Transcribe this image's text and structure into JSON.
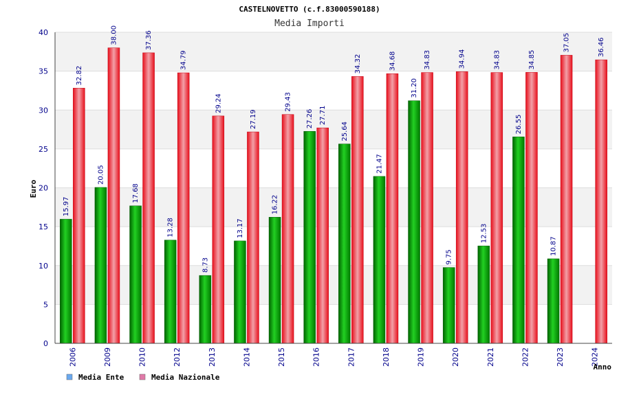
{
  "chart_data": {
    "type": "bar",
    "title": "CASTELNOVETTO (c.f.83000590188)",
    "subtitle": "Media Importi",
    "xlabel": "Anno",
    "ylabel": "Euro",
    "ylim": [
      0,
      40
    ],
    "yticks": [
      "0",
      "5",
      "10",
      "15",
      "20",
      "25",
      "30",
      "35",
      "40"
    ],
    "grid": true,
    "legend_position": "bottom-left",
    "categories": [
      "2006",
      "2009",
      "2010",
      "2012",
      "2013",
      "2014",
      "2015",
      "2016",
      "2017",
      "2018",
      "2019",
      "2020",
      "2021",
      "2022",
      "2023",
      "2024"
    ],
    "series": [
      {
        "name": "Media Ente",
        "color": "#00a000",
        "legend_color": "#6aa9ef",
        "values": [
          15.97,
          20.05,
          17.68,
          13.28,
          8.73,
          13.17,
          16.22,
          27.26,
          25.64,
          21.47,
          31.2,
          9.75,
          12.53,
          26.55,
          10.87,
          null
        ],
        "labels": [
          "15.97",
          "20.05",
          "17.68",
          "13.28",
          "8.73",
          "13.17",
          "16.22",
          "27.26",
          "25.64",
          "21.47",
          "31.20",
          "9.75",
          "12.53",
          "26.55",
          "10.87",
          ""
        ]
      },
      {
        "name": "Media Nazionale",
        "color": "#e8101c",
        "legend_color": "#e07aa8",
        "values": [
          32.82,
          38.0,
          37.36,
          34.79,
          29.24,
          27.19,
          29.43,
          27.71,
          34.32,
          34.68,
          34.83,
          34.94,
          34.83,
          34.85,
          37.05,
          36.46
        ],
        "labels": [
          "32.82",
          "38.00",
          "37.36",
          "34.79",
          "29.24",
          "27.19",
          "29.43",
          "27.71",
          "34.32",
          "34.68",
          "34.83",
          "34.94",
          "34.83",
          "34.85",
          "37.05",
          "36.46"
        ]
      }
    ]
  }
}
